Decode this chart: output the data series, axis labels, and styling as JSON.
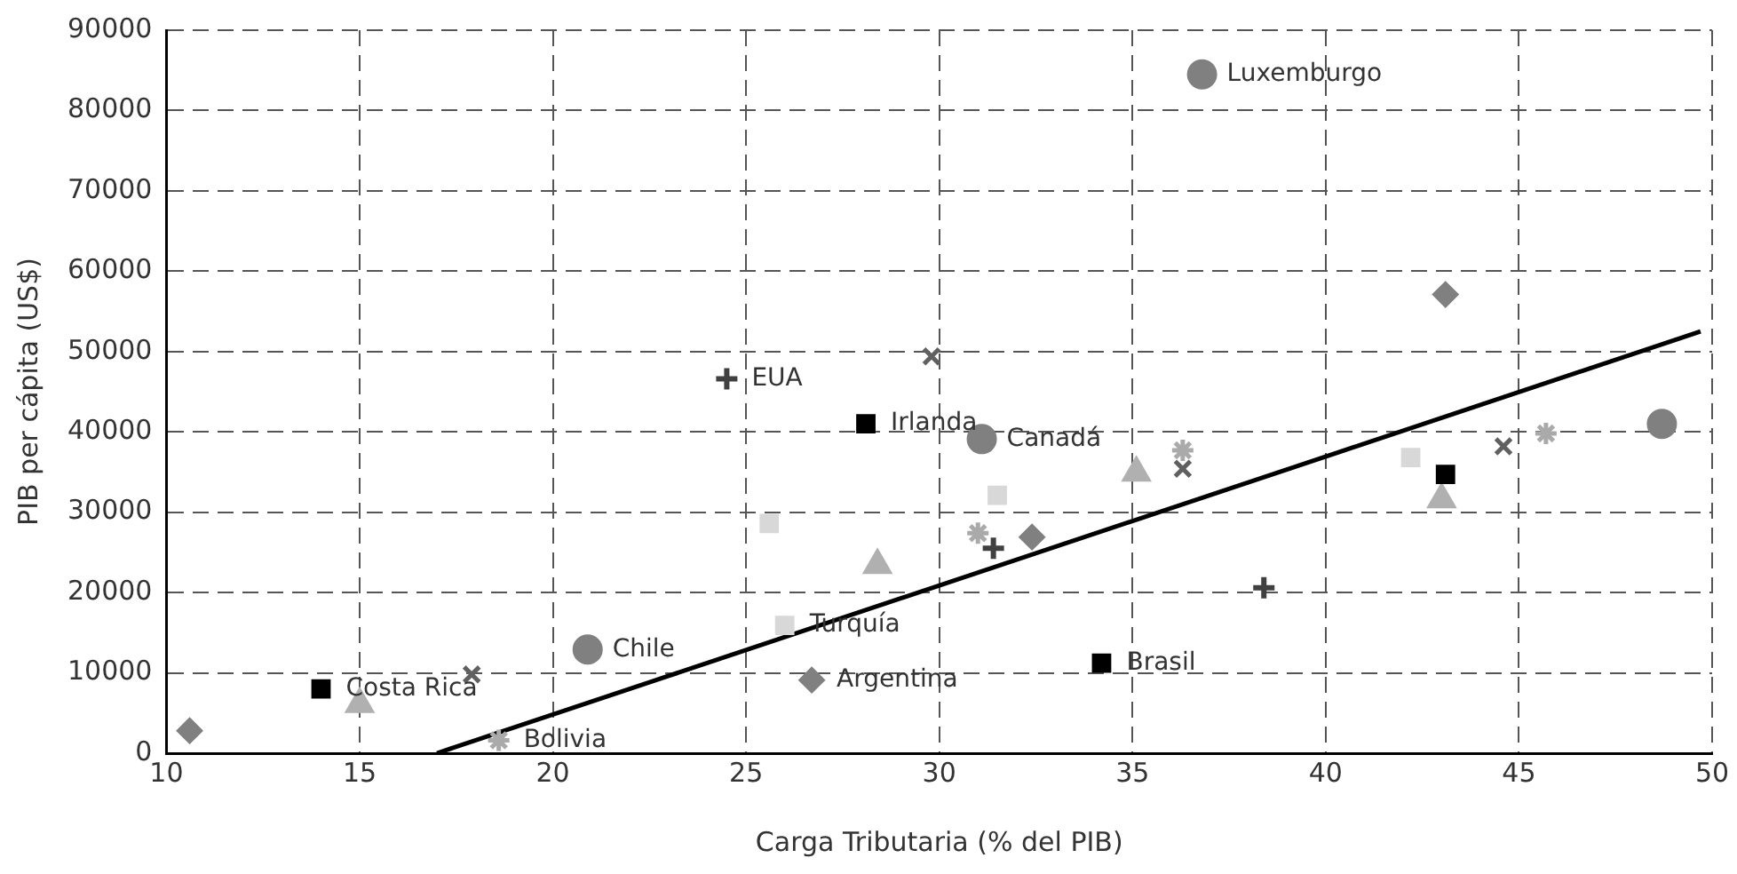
{
  "chart_data": {
    "type": "scatter",
    "xlabel": "Carga Tributaria (% del PIB)",
    "ylabel": "PIB per cápita (US$)",
    "xlim": [
      10,
      50
    ],
    "xticks": [
      10,
      15,
      20,
      25,
      30,
      35,
      40,
      45,
      50
    ],
    "ylim": [
      0,
      90000
    ],
    "yticks": [
      0,
      10000,
      20000,
      30000,
      40000,
      50000,
      60000,
      70000,
      80000,
      90000
    ],
    "grid": true,
    "legend": false,
    "series": [
      {
        "marker": "circle",
        "color": "#808080",
        "x": [
          36.8,
          31.1,
          20.9,
          48.7
        ],
        "values": [
          84500,
          39100,
          12900,
          41000
        ]
      },
      {
        "marker": "square",
        "color": "#000000",
        "x": [
          14.0,
          28.1,
          34.2,
          43.1
        ],
        "values": [
          8000,
          41000,
          11200,
          34700
        ]
      },
      {
        "marker": "diamond",
        "color": "#808080",
        "x": [
          10.6,
          26.7,
          32.4,
          43.1
        ],
        "values": [
          2800,
          9100,
          26900,
          57100
        ]
      },
      {
        "marker": "triangle",
        "color": "#b0b0b0",
        "x": [
          15.0,
          28.4,
          35.1,
          43.0
        ],
        "values": [
          6100,
          23400,
          34900,
          31600
        ]
      },
      {
        "marker": "plus",
        "color": "#404040",
        "x": [
          24.5,
          31.4,
          38.4
        ],
        "values": [
          46600,
          25500,
          20600
        ]
      },
      {
        "marker": "cross",
        "color": "#606060",
        "x": [
          17.9,
          29.8,
          36.3,
          44.6
        ],
        "values": [
          9800,
          49400,
          35400,
          38200
        ]
      },
      {
        "marker": "cross",
        "color": "#aaaaaa",
        "x": [
          18.6,
          31.0,
          36.3,
          45.7
        ],
        "values": [
          1600,
          27400,
          37700,
          39800
        ]
      },
      {
        "marker": "square",
        "color": "#d8d8d8",
        "x": [
          25.6,
          26.0,
          31.5,
          42.2
        ],
        "values": [
          28600,
          15900,
          32100,
          36800
        ]
      },
      {
        "type": "line",
        "marker": "none",
        "color": "#000000",
        "x": [
          17.0,
          49.7
        ],
        "values": [
          0,
          52500
        ]
      }
    ],
    "annotations": [
      {
        "text": "Luxemburgo",
        "x": 36.8,
        "y": 84500
      },
      {
        "text": "Canadá",
        "x": 31.1,
        "y": 39100
      },
      {
        "text": "Chile",
        "x": 20.9,
        "y": 12900
      },
      {
        "text": "Costa Rica",
        "x": 14.0,
        "y": 8000
      },
      {
        "text": "Irlanda",
        "x": 28.1,
        "y": 41000
      },
      {
        "text": "Brasil",
        "x": 34.2,
        "y": 11200
      },
      {
        "text": "Argentina",
        "x": 26.7,
        "y": 9100
      },
      {
        "text": "EUA",
        "x": 24.5,
        "y": 46600
      },
      {
        "text": "Bolivia",
        "x": 18.6,
        "y": 1600
      },
      {
        "text": "Turquía",
        "x": 26.0,
        "y": 15900
      }
    ]
  }
}
